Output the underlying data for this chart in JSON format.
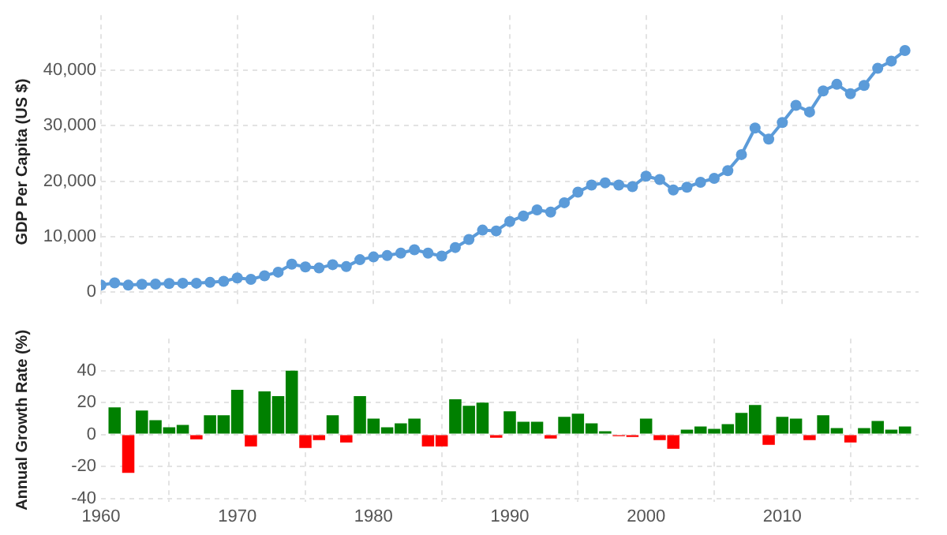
{
  "chart_data": [
    {
      "type": "line",
      "ylabel": "GDP Per Capita (US $)",
      "x": [
        1960,
        1961,
        1962,
        1963,
        1964,
        1965,
        1966,
        1967,
        1968,
        1969,
        1970,
        1971,
        1972,
        1973,
        1974,
        1975,
        1976,
        1977,
        1978,
        1979,
        1980,
        1981,
        1982,
        1983,
        1984,
        1985,
        1986,
        1987,
        1988,
        1989,
        1990,
        1991,
        1992,
        1993,
        1994,
        1995,
        1996,
        1997,
        1998,
        1999,
        2000,
        2001,
        2002,
        2003,
        2004,
        2005,
        2006,
        2007,
        2008,
        2009,
        2010,
        2011,
        2012,
        2013,
        2014,
        2015,
        2016,
        2017,
        2018,
        2019
      ],
      "series": [
        {
          "color": "#5b9bd9",
          "values": [
            1200,
            1600,
            1200,
            1350,
            1400,
            1500,
            1550,
            1550,
            1700,
            1900,
            2500,
            2250,
            2900,
            3550,
            5000,
            4500,
            4300,
            4900,
            4550,
            5800,
            6300,
            6550,
            7000,
            7600,
            7000,
            6450,
            8000,
            9450,
            11150,
            11000,
            12700,
            13700,
            14800,
            14400,
            16100,
            18000,
            19300,
            19700,
            19300,
            19000,
            20900,
            20300,
            18400,
            18900,
            19800,
            20500,
            21900,
            24800,
            29600,
            27600,
            30600,
            33700,
            32500,
            36300,
            37500,
            35800,
            37300,
            40400,
            41700,
            43600
          ]
        }
      ],
      "xlim": [
        1960,
        2020
      ],
      "xticks": [
        {
          "value": 1960,
          "label": null
        },
        {
          "value": 1970,
          "label": null
        },
        {
          "value": 1980,
          "label": null
        },
        {
          "value": 1990,
          "label": null
        },
        {
          "value": 2000,
          "label": null
        },
        {
          "value": 2010,
          "label": null
        }
      ],
      "ylim": [
        -3000,
        50000
      ],
      "yticks": [
        {
          "value": 0,
          "label": "0"
        },
        {
          "value": 10000,
          "label": "10,000"
        },
        {
          "value": 20000,
          "label": "20,000"
        },
        {
          "value": 30000,
          "label": "30,000"
        },
        {
          "value": 40000,
          "label": "40,000"
        }
      ],
      "tick_labels": "y",
      "grid": true,
      "legend": false,
      "marker": "circle",
      "line_style": "solid"
    },
    {
      "type": "bar",
      "ylabel": "Annual Growth Rate (%)",
      "x": [
        1961,
        1962,
        1963,
        1964,
        1965,
        1966,
        1967,
        1968,
        1969,
        1970,
        1971,
        1972,
        1973,
        1974,
        1975,
        1976,
        1977,
        1978,
        1979,
        1980,
        1981,
        1982,
        1983,
        1984,
        1985,
        1986,
        1987,
        1988,
        1989,
        1990,
        1991,
        1992,
        1993,
        1994,
        1995,
        1996,
        1997,
        1998,
        1999,
        2000,
        2001,
        2002,
        2003,
        2004,
        2005,
        2006,
        2007,
        2008,
        2009,
        2010,
        2011,
        2012,
        2013,
        2014,
        2015,
        2016,
        2017,
        2018,
        2019
      ],
      "values": [
        17,
        -24,
        15,
        9,
        4.5,
        6,
        -3,
        12,
        12,
        28,
        -7.5,
        27,
        24,
        40,
        -8.5,
        -3.5,
        12,
        -5,
        24,
        10,
        4.5,
        7,
        10,
        -7.5,
        -7.5,
        22,
        18,
        20,
        -2,
        14.5,
        8,
        8,
        -2.5,
        11,
        13,
        7,
        2,
        -1,
        -1.5,
        10,
        -3.5,
        -9,
        3,
        5,
        3.5,
        6.5,
        13.5,
        18.5,
        -6.5,
        11,
        10,
        -3.5,
        12,
        4,
        -5,
        4,
        8.5,
        3,
        5
      ],
      "colors": [
        "#008000",
        "#ff0000",
        "#008000",
        "#008000",
        "#008000",
        "#008000",
        "#ff0000",
        "#008000",
        "#008000",
        "#008000",
        "#ff0000",
        "#008000",
        "#008000",
        "#008000",
        "#ff0000",
        "#ff0000",
        "#008000",
        "#ff0000",
        "#008000",
        "#008000",
        "#008000",
        "#008000",
        "#008000",
        "#ff0000",
        "#ff0000",
        "#008000",
        "#008000",
        "#008000",
        "#ff0000",
        "#008000",
        "#008000",
        "#008000",
        "#ff0000",
        "#008000",
        "#008000",
        "#008000",
        "#008000",
        "#ff0000",
        "#ff0000",
        "#008000",
        "#ff0000",
        "#ff0000",
        "#008000",
        "#008000",
        "#008000",
        "#008000",
        "#008000",
        "#008000",
        "#ff0000",
        "#008000",
        "#008000",
        "#ff0000",
        "#008000",
        "#008000",
        "#ff0000",
        "#008000",
        "#008000",
        "#008000",
        "#008000"
      ],
      "xlim": [
        1960,
        2020
      ],
      "xticks": [
        1960,
        1970,
        1980,
        1990,
        2000,
        2010
      ],
      "ylim": [
        -42,
        60
      ],
      "yticks": [
        -40,
        -20,
        0,
        20,
        40
      ],
      "grid": true,
      "legend": false
    }
  ]
}
